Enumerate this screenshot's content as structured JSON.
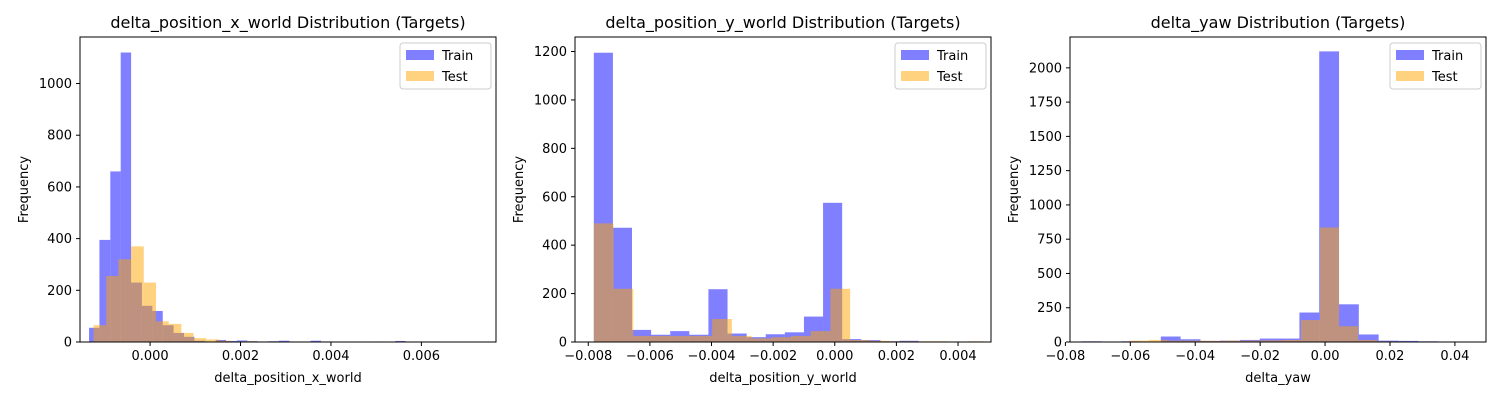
{
  "chart_data": [
    {
      "type": "bar",
      "title": "delta_position_x_world Distribution (Targets)",
      "xlabel": "delta_position_x_world",
      "ylabel": "Frequency",
      "xlim": [
        -0.00155,
        0.00765
      ],
      "ylim": [
        0,
        1180
      ],
      "xticks": [
        -0.0,
        0.002,
        0.004,
        0.006
      ],
      "xtick_labels": [
        "0.000",
        "0.002",
        "0.004",
        "0.006"
      ],
      "yticks": [
        0,
        200,
        400,
        600,
        800,
        1000
      ],
      "ytick_labels": [
        "0",
        "200",
        "400",
        "600",
        "800",
        "1000"
      ],
      "grid": false,
      "legend": "top-right",
      "series": [
        {
          "name": "Train",
          "color": "#0000ff",
          "opacity": 0.5,
          "bins": [
            -0.00135,
            -0.00112,
            -0.00088,
            -0.00065,
            -0.00042,
            -0.00018,
            5e-05,
            0.00028,
            0.00052,
            0.00075,
            0.00098,
            0.00122,
            0.00145,
            0.00168,
            0.00192,
            0.00215,
            0.00238,
            0.00262,
            0.00285,
            0.00308,
            0.00332,
            0.00355,
            0.00378,
            0.00402,
            0.00425,
            0.00448,
            0.00472,
            0.00495,
            0.00518,
            0.00542,
            0.00565,
            0.00588,
            0.00612,
            0.00635,
            0.00658
          ],
          "values": [
            55,
            395,
            660,
            1120,
            230,
            140,
            120,
            65,
            35,
            20,
            5,
            2,
            8,
            4,
            6,
            3,
            2,
            3,
            5,
            2,
            1,
            5,
            2,
            0,
            0,
            1,
            0,
            2,
            1,
            4,
            0,
            1,
            2,
            0
          ]
        },
        {
          "name": "Test",
          "color": "#ffa500",
          "opacity": 0.5,
          "bins": [
            -0.00125,
            -0.00097,
            -0.0007,
            -0.00042,
            -0.00014,
            0.00013,
            0.00041,
            0.00069,
            0.00096,
            0.00124,
            0.00152,
            0.00179,
            0.00207,
            0.00235,
            0.00262,
            0.0029,
            0.00318,
            0.00345,
            0.00373,
            0.00401,
            0.00428,
            0.00456,
            0.00484,
            0.00511,
            0.00539,
            0.00567,
            0.00594,
            0.00622,
            0.0065,
            0.00677,
            0.00705,
            0.00733
          ],
          "values": [
            65,
            255,
            320,
            370,
            230,
            80,
            70,
            35,
            15,
            10,
            5,
            2,
            3,
            2,
            1,
            2,
            1,
            1,
            1,
            0,
            1,
            0,
            0,
            1,
            0,
            0,
            0,
            0,
            1,
            0,
            1
          ]
        }
      ]
    },
    {
      "type": "bar",
      "title": "delta_position_y_world Distribution (Targets)",
      "xlabel": "delta_position_y_world",
      "ylabel": "Frequency",
      "xlim": [
        -0.00843,
        0.00507
      ],
      "ylim": [
        0,
        1260
      ],
      "xticks": [
        -0.008,
        -0.006,
        -0.004,
        -0.002,
        0.0,
        0.002,
        0.004
      ],
      "xtick_labels": [
        "−0.008",
        "−0.006",
        "−0.004",
        "−0.002",
        "0.000",
        "0.002",
        "0.004"
      ],
      "yticks": [
        0,
        200,
        400,
        600,
        800,
        1000,
        1200
      ],
      "ytick_labels": [
        "0",
        "200",
        "400",
        "600",
        "800",
        "1000",
        "1200"
      ],
      "grid": false,
      "legend": "top-right",
      "series": [
        {
          "name": "Train",
          "color": "#0000ff",
          "opacity": 0.5,
          "bins": [
            -0.00782,
            -0.0072,
            -0.00658,
            -0.00596,
            -0.00534,
            -0.00472,
            -0.0041,
            -0.00348,
            -0.00286,
            -0.00224,
            -0.00162,
            -0.001,
            -0.00038,
            0.00024,
            0.00086,
            0.00148,
            0.0021,
            0.00272,
            0.00334,
            0.00396,
            0.00458
          ],
          "values": [
            1195,
            472,
            50,
            30,
            45,
            30,
            218,
            35,
            20,
            32,
            40,
            105,
            575,
            12,
            8,
            3,
            5,
            2,
            1,
            1
          ]
        },
        {
          "name": "Test",
          "color": "#ffa500",
          "opacity": 0.5,
          "bins": [
            -0.00782,
            -0.00718,
            -0.00654,
            -0.0059,
            -0.00526,
            -0.00462,
            -0.00398,
            -0.00334,
            -0.0027,
            -0.00206,
            -0.00142,
            -0.00078,
            -0.00014,
            0.0005,
            0.00114,
            0.00178,
            0.00242,
            0.00306,
            0.0037,
            0.00434,
            0.00482
          ],
          "values": [
            490,
            220,
            25,
            25,
            25,
            25,
            95,
            25,
            15,
            20,
            25,
            45,
            220,
            8,
            5,
            3,
            3,
            3,
            2,
            3
          ]
        }
      ]
    },
    {
      "type": "bar",
      "title": "delta_yaw Distribution (Targets)",
      "xlabel": "delta_yaw",
      "ylabel": "Frequency",
      "xlim": [
        -0.07858,
        0.04958
      ],
      "ylim": [
        0,
        2225
      ],
      "xticks": [
        -0.08,
        -0.06,
        -0.04,
        -0.02,
        0.0,
        0.02,
        0.04
      ],
      "xtick_labels": [
        "−0.08",
        "−0.06",
        "−0.04",
        "−0.02",
        "0.00",
        "0.02",
        "0.04"
      ],
      "yticks": [
        0,
        250,
        500,
        750,
        1000,
        1250,
        1500,
        1750,
        2000
      ],
      "ytick_labels": [
        "0",
        "250",
        "500",
        "750",
        "1000",
        "1250",
        "1500",
        "1750",
        "2000"
      ],
      "grid": false,
      "legend": "top-right",
      "series": [
        {
          "name": "Train",
          "color": "#0000ff",
          "opacity": 0.5,
          "bins": [
            -0.075,
            -0.0689,
            -0.0628,
            -0.0567,
            -0.0506,
            -0.0445,
            -0.0384,
            -0.0323,
            -0.0262,
            -0.0201,
            -0.014,
            -0.0079,
            -0.0018,
            0.0043,
            0.0104,
            0.0165,
            0.0226,
            0.0287,
            0.0348,
            0.0409,
            0.047
          ],
          "values": [
            5,
            3,
            5,
            2,
            40,
            20,
            8,
            10,
            15,
            25,
            25,
            215,
            2120,
            275,
            55,
            10,
            8,
            5,
            3,
            2
          ]
        },
        {
          "name": "Test",
          "color": "#ffa500",
          "opacity": 0.5,
          "bins": [
            -0.072,
            -0.06613,
            -0.06026,
            -0.05439,
            -0.04852,
            -0.04265,
            -0.03678,
            -0.03091,
            -0.02504,
            -0.01917,
            -0.0133,
            -0.00743,
            -0.00156,
            0.00431,
            0.01018,
            0.01605,
            0.02192,
            0.02779,
            0.03366,
            0.03953,
            0.0454
          ],
          "values": [
            3,
            2,
            10,
            15,
            10,
            10,
            8,
            10,
            10,
            12,
            15,
            160,
            835,
            115,
            15,
            5,
            3,
            3,
            2,
            2
          ]
        }
      ]
    }
  ]
}
